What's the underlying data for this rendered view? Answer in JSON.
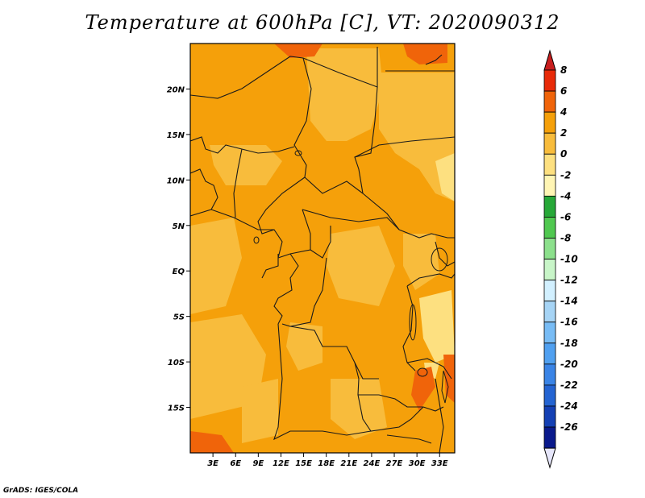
{
  "title": "Temperature at 600hPa [C], VT: 2020090312",
  "credit": "GrADS: IGES/COLA",
  "map": {
    "lat_labels": [
      "20N",
      "15N",
      "10N",
      "5N",
      "EQ",
      "5S",
      "10S",
      "15S"
    ],
    "lat_values": [
      20,
      15,
      10,
      5,
      0,
      -5,
      -10,
      -15
    ],
    "lon_labels": [
      "3E",
      "6E",
      "9E",
      "12E",
      "15E",
      "18E",
      "21E",
      "24E",
      "27E",
      "30E",
      "33E"
    ],
    "lon_values": [
      3,
      6,
      9,
      12,
      15,
      18,
      21,
      24,
      27,
      30,
      33
    ],
    "lon_range": [
      0,
      35
    ],
    "lat_range": [
      -20,
      25
    ],
    "dominant_color": "#f5a00a"
  },
  "colorbar": {
    "labels": [
      "8",
      "6",
      "4",
      "2",
      "0",
      "-2",
      "-4",
      "-6",
      "-8",
      "-10",
      "-12",
      "-14",
      "-16",
      "-18",
      "-20",
      "-22",
      "-24",
      "-26"
    ],
    "colors": [
      "#e82a08",
      "#f0640a",
      "#f5a00a",
      "#f8bc3c",
      "#fde080",
      "#fff5b4",
      "#27a838",
      "#50c850",
      "#8ce08c",
      "#c8f5c8",
      "#d2f0ff",
      "#a6d4f5",
      "#78bcf5",
      "#50a0f0",
      "#3a84e6",
      "#2464d2",
      "#1440b4",
      "#0a1a8c"
    ],
    "top_arrow_color": "#c81e1e",
    "bottom_arrow_color": "#e6e6fa"
  }
}
